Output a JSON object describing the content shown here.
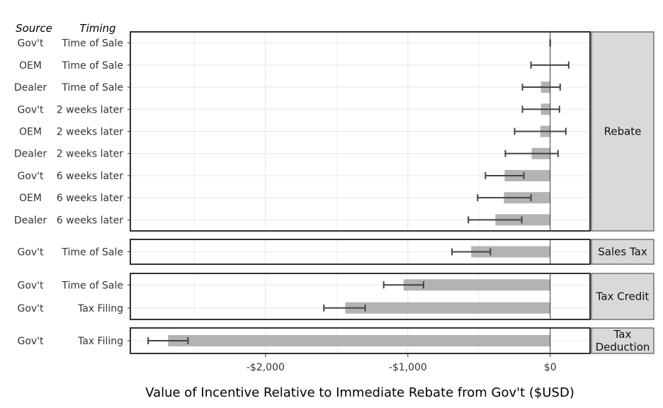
{
  "chart_data": {
    "type": "bar",
    "orientation": "horizontal",
    "xlabel": "Value of Incentive Relative to Immediate Rebate from Gov't ($USD)",
    "column_headers": [
      "Source",
      "Timing"
    ],
    "xlim": [
      -2950,
      280
    ],
    "xticks": [
      -2000,
      -1000,
      0
    ],
    "xtick_labels": [
      "-$2,000",
      "-$1,000",
      "$0"
    ],
    "grid": true,
    "colors": {
      "bar": "#b3b3b3",
      "errorbar": "#444444",
      "strip": "#d9d9d9",
      "zero_line": "#333333"
    },
    "panels": [
      {
        "label": "Rebate",
        "rows": [
          {
            "source": "Gov't",
            "timing": "Time of Sale",
            "value": 0,
            "ci": [
              0,
              0
            ]
          },
          {
            "source": "OEM",
            "timing": "Time of Sale",
            "value": 0,
            "ci": [
              -135,
              130
            ]
          },
          {
            "source": "Dealer",
            "timing": "Time of Sale",
            "value": -65,
            "ci": [
              -195,
              70
            ]
          },
          {
            "source": "Gov't",
            "timing": "2 weeks later",
            "value": -65,
            "ci": [
              -195,
              65
            ]
          },
          {
            "source": "OEM",
            "timing": "2 weeks later",
            "value": -70,
            "ci": [
              -250,
              110
            ]
          },
          {
            "source": "Dealer",
            "timing": "2 weeks later",
            "value": -130,
            "ci": [
              -315,
              55
            ]
          },
          {
            "source": "Gov't",
            "timing": "6 weeks later",
            "value": -320,
            "ci": [
              -455,
              -185
            ]
          },
          {
            "source": "OEM",
            "timing": "6 weeks later",
            "value": -325,
            "ci": [
              -510,
              -135
            ]
          },
          {
            "source": "Dealer",
            "timing": "6 weeks later",
            "value": -385,
            "ci": [
              -575,
              -200
            ]
          }
        ]
      },
      {
        "label": "Sales Tax",
        "rows": [
          {
            "source": "Gov't",
            "timing": "Time of Sale",
            "value": -555,
            "ci": [
              -690,
              -420
            ]
          }
        ]
      },
      {
        "label": "Tax Credit",
        "rows": [
          {
            "source": "Gov't",
            "timing": "Time of Sale",
            "value": -1030,
            "ci": [
              -1170,
              -890
            ]
          },
          {
            "source": "Gov't",
            "timing": "Tax Filing",
            "value": -1440,
            "ci": [
              -1590,
              -1300
            ]
          }
        ]
      },
      {
        "label": "Tax\nDeduction",
        "rows": [
          {
            "source": "Gov't",
            "timing": "Tax Filing",
            "value": -2685,
            "ci": [
              -2825,
              -2545
            ]
          }
        ]
      }
    ]
  }
}
